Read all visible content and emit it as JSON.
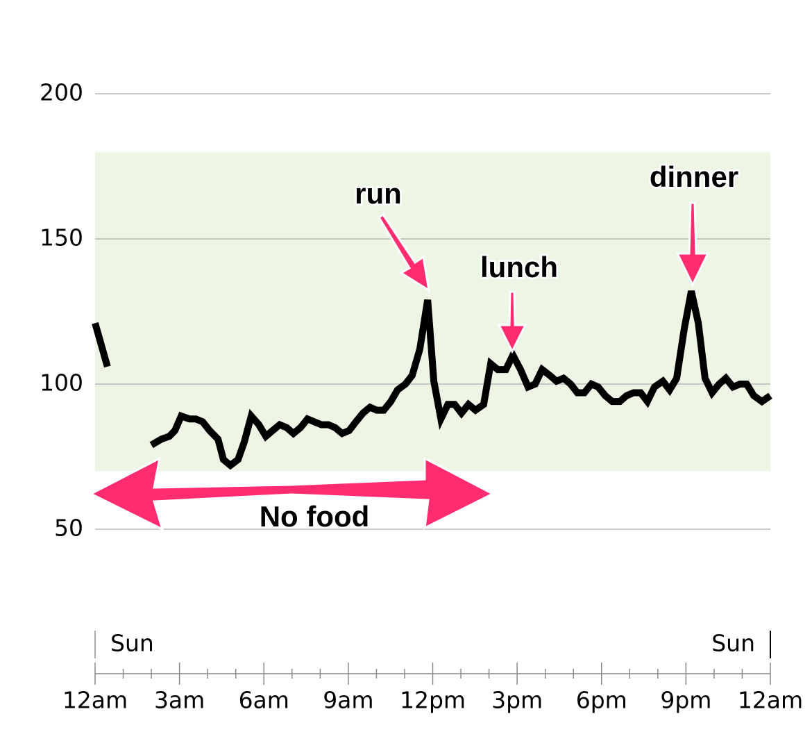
{
  "chart_data": {
    "type": "line",
    "x": [
      0,
      0.44,
      1.2,
      2.0,
      2.35,
      2.64,
      2.84,
      3.06,
      3.35,
      3.58,
      3.82,
      4.07,
      4.37,
      4.56,
      4.81,
      5.08,
      5.3,
      5.55,
      5.82,
      6.07,
      6.31,
      6.56,
      6.81,
      7.05,
      7.3,
      7.55,
      7.79,
      8.04,
      8.29,
      8.53,
      8.78,
      9.03,
      9.27,
      9.52,
      9.77,
      10.01,
      10.26,
      10.51,
      10.75,
      11.03,
      11.27,
      11.54,
      11.82,
      12.04,
      12.29,
      12.54,
      12.78,
      13.02,
      13.27,
      13.52,
      13.81,
      14.06,
      14.31,
      14.6,
      14.85,
      15.12,
      15.39,
      15.64,
      15.89,
      16.16,
      16.4,
      16.65,
      16.9,
      17.14,
      17.39,
      17.64,
      17.88,
      18.13,
      18.38,
      18.65,
      18.89,
      19.14,
      19.39,
      19.63,
      19.88,
      20.18,
      20.42,
      20.67,
      20.94,
      21.19,
      21.44,
      21.68,
      21.93,
      22.18,
      22.42,
      22.67,
      22.92,
      23.16,
      23.41,
      23.7,
      24
    ],
    "values": [
      121,
      106,
      null,
      79,
      81,
      82,
      84,
      89,
      88,
      88,
      87,
      84,
      81,
      74,
      72,
      74,
      80,
      89,
      86,
      82,
      84,
      86,
      85,
      83,
      85,
      88,
      87,
      86,
      86,
      85,
      83,
      84,
      87,
      90,
      92,
      91,
      91,
      94,
      98,
      100,
      103,
      112,
      129,
      101,
      88,
      93,
      93,
      90,
      93,
      91,
      93,
      107,
      105,
      105,
      110,
      105,
      99,
      100,
      105,
      103,
      101,
      102,
      100,
      97,
      97,
      100,
      99,
      96,
      94,
      94,
      96,
      97,
      97,
      94,
      99,
      101,
      98,
      102,
      119,
      132,
      121,
      102,
      97,
      100,
      102,
      99,
      100,
      100,
      96,
      94,
      96
    ],
    "color": "#000000",
    "xlim": [
      0,
      24
    ],
    "xticks": [
      {
        "value": 0,
        "label": "12am"
      },
      {
        "value": 3,
        "label": "3am"
      },
      {
        "value": 6,
        "label": "6am"
      },
      {
        "value": 9,
        "label": "9am"
      },
      {
        "value": 12,
        "label": "12pm"
      },
      {
        "value": 15,
        "label": "3pm"
      },
      {
        "value": 18,
        "label": "6pm"
      },
      {
        "value": 21,
        "label": "9pm"
      },
      {
        "value": 24,
        "label": "12am"
      }
    ],
    "xminorticks": [
      1,
      2,
      4,
      5,
      7,
      8,
      10,
      11,
      13,
      14,
      16,
      17,
      19,
      20,
      22,
      23
    ],
    "day_labels": [
      {
        "value": 0,
        "label": "Sun"
      },
      {
        "value": 24,
        "label": "Sun"
      }
    ],
    "ylim": [
      50,
      200
    ],
    "yticks": [
      50,
      100,
      150,
      200
    ],
    "grid": true,
    "target_range": [
      70,
      180
    ],
    "target_color": "#edf5e5",
    "annotations": [
      "run",
      "lunch",
      "dinner",
      "No food"
    ],
    "annotation_color": "#ff2d6f"
  }
}
